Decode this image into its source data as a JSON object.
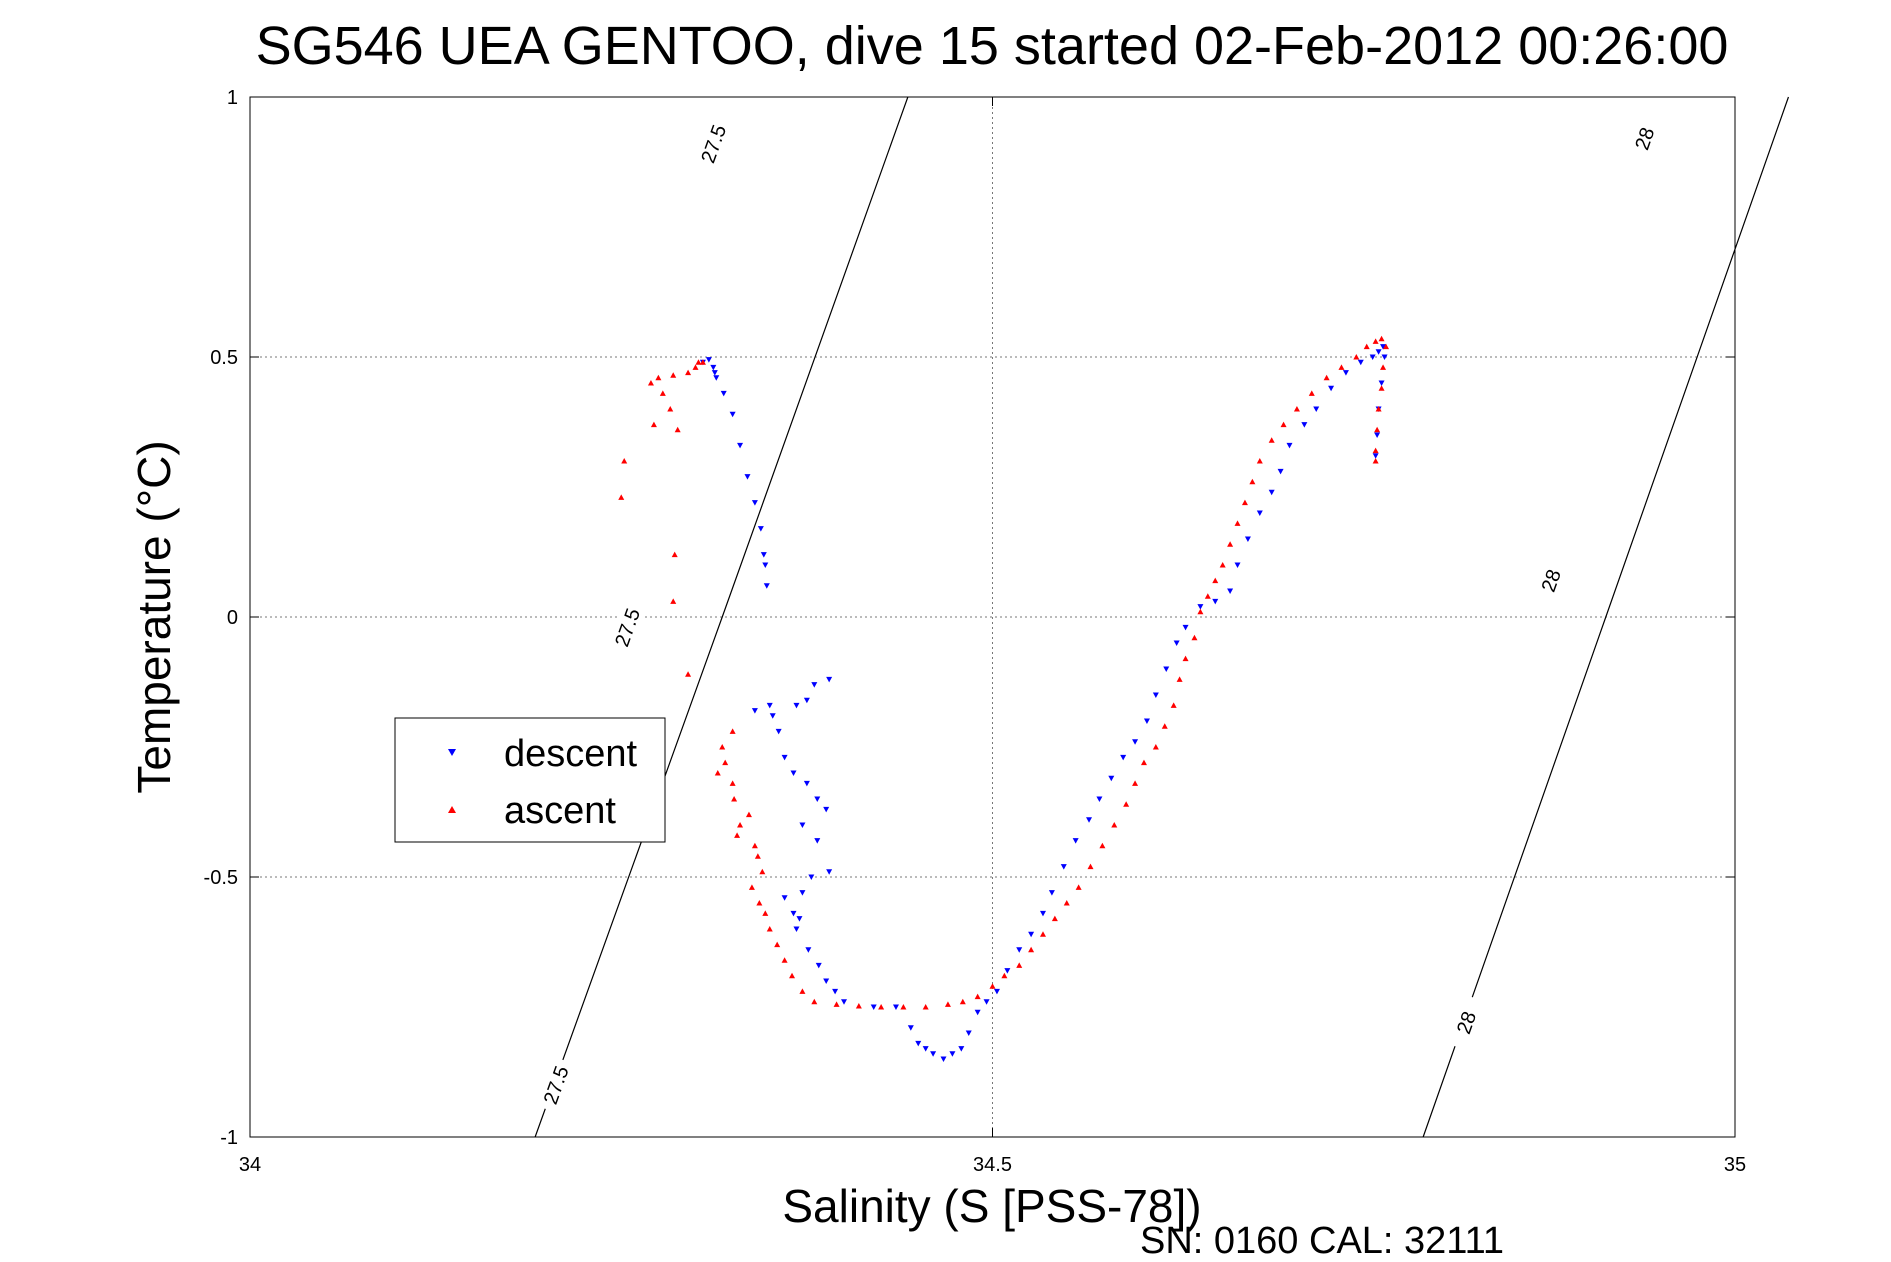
{
  "chart_data": {
    "type": "scatter",
    "title": "SG546 UEA GENTOO, dive 15 started 02-Feb-2012 00:26:00",
    "xlabel": "Salinity (S [PSS-78])",
    "ylabel": "Temperature (°C)",
    "footer": "SN: 0160  CAL: 32111",
    "xlim": [
      34,
      35
    ],
    "ylim": [
      -1,
      1
    ],
    "xticks": [
      34,
      34.5,
      35
    ],
    "xtick_labels": [
      "34",
      "34.5",
      "35"
    ],
    "yticks": [
      -1,
      -0.5,
      0,
      0.5,
      1
    ],
    "ytick_labels": [
      "-1",
      "-0.5",
      "0",
      "0.5",
      "1"
    ],
    "grid": true,
    "legend_position": "center-left",
    "contours": [
      {
        "label": "27.5",
        "points": [
          [
            34.192,
            -1
          ],
          [
            34.318,
            0
          ],
          [
            34.443,
            1
          ]
        ],
        "label_positions": [
          [
            34.206,
            -0.9
          ],
          [
            34.254,
            -0.02
          ],
          [
            34.312,
            0.91
          ]
        ]
      },
      {
        "label": "28",
        "points": [
          [
            34.79,
            -1
          ],
          [
            34.913,
            0
          ],
          [
            35.036,
            1
          ]
        ],
        "label_positions": [
          [
            34.819,
            -0.78
          ],
          [
            34.876,
            0.07
          ],
          [
            34.939,
            0.92
          ]
        ]
      }
    ],
    "series": [
      {
        "name": "descent",
        "color": "#0000ff",
        "marker": "triangle-down",
        "points": [
          [
            34.305,
            0.49
          ],
          [
            34.309,
            0.495
          ],
          [
            34.312,
            0.48
          ],
          [
            34.313,
            0.47
          ],
          [
            34.314,
            0.46
          ],
          [
            34.319,
            0.43
          ],
          [
            34.325,
            0.39
          ],
          [
            34.33,
            0.33
          ],
          [
            34.335,
            0.27
          ],
          [
            34.34,
            0.22
          ],
          [
            34.344,
            0.17
          ],
          [
            34.346,
            0.12
          ],
          [
            34.347,
            0.1
          ],
          [
            34.348,
            0.06
          ],
          [
            34.39,
            -0.12
          ],
          [
            34.38,
            -0.13
          ],
          [
            34.375,
            -0.16
          ],
          [
            34.368,
            -0.17
          ],
          [
            34.35,
            -0.17
          ],
          [
            34.34,
            -0.18
          ],
          [
            34.352,
            -0.19
          ],
          [
            34.356,
            -0.22
          ],
          [
            34.36,
            -0.27
          ],
          [
            34.366,
            -0.3
          ],
          [
            34.375,
            -0.32
          ],
          [
            34.382,
            -0.35
          ],
          [
            34.388,
            -0.37
          ],
          [
            34.372,
            -0.4
          ],
          [
            34.382,
            -0.43
          ],
          [
            34.39,
            -0.49
          ],
          [
            34.378,
            -0.5
          ],
          [
            34.372,
            -0.53
          ],
          [
            34.36,
            -0.54
          ],
          [
            34.366,
            -0.57
          ],
          [
            34.37,
            -0.58
          ],
          [
            34.368,
            -0.6
          ],
          [
            34.376,
            -0.64
          ],
          [
            34.383,
            -0.67
          ],
          [
            34.388,
            -0.7
          ],
          [
            34.394,
            -0.72
          ],
          [
            34.4,
            -0.74
          ],
          [
            34.42,
            -0.75
          ],
          [
            34.435,
            -0.75
          ],
          [
            34.445,
            -0.79
          ],
          [
            34.45,
            -0.82
          ],
          [
            34.455,
            -0.83
          ],
          [
            34.46,
            -0.84
          ],
          [
            34.467,
            -0.85
          ],
          [
            34.473,
            -0.84
          ],
          [
            34.479,
            -0.83
          ],
          [
            34.484,
            -0.8
          ],
          [
            34.49,
            -0.76
          ],
          [
            34.496,
            -0.74
          ],
          [
            34.503,
            -0.72
          ],
          [
            34.51,
            -0.68
          ],
          [
            34.518,
            -0.64
          ],
          [
            34.526,
            -0.61
          ],
          [
            34.534,
            -0.57
          ],
          [
            34.54,
            -0.53
          ],
          [
            34.548,
            -0.48
          ],
          [
            34.556,
            -0.43
          ],
          [
            34.565,
            -0.39
          ],
          [
            34.572,
            -0.35
          ],
          [
            34.58,
            -0.31
          ],
          [
            34.588,
            -0.27
          ],
          [
            34.596,
            -0.24
          ],
          [
            34.604,
            -0.2
          ],
          [
            34.61,
            -0.15
          ],
          [
            34.617,
            -0.1
          ],
          [
            34.624,
            -0.05
          ],
          [
            34.63,
            -0.02
          ],
          [
            34.64,
            0.02
          ],
          [
            34.65,
            0.03
          ],
          [
            34.66,
            0.05
          ],
          [
            34.665,
            0.1
          ],
          [
            34.672,
            0.15
          ],
          [
            34.68,
            0.2
          ],
          [
            34.688,
            0.24
          ],
          [
            34.694,
            0.28
          ],
          [
            34.7,
            0.33
          ],
          [
            34.71,
            0.37
          ],
          [
            34.718,
            0.4
          ],
          [
            34.728,
            0.44
          ],
          [
            34.738,
            0.47
          ],
          [
            34.748,
            0.49
          ],
          [
            34.756,
            0.5
          ],
          [
            34.76,
            0.51
          ],
          [
            34.763,
            0.52
          ],
          [
            34.764,
            0.5
          ],
          [
            34.762,
            0.45
          ],
          [
            34.76,
            0.4
          ],
          [
            34.759,
            0.35
          ],
          [
            34.758,
            0.31
          ]
        ]
      },
      {
        "name": "ascent",
        "color": "#ff0000",
        "marker": "triangle-up",
        "points": [
          [
            34.302,
            0.49
          ],
          [
            34.305,
            0.49
          ],
          [
            34.3,
            0.48
          ],
          [
            34.295,
            0.47
          ],
          [
            34.285,
            0.465
          ],
          [
            34.275,
            0.46
          ],
          [
            34.27,
            0.45
          ],
          [
            34.278,
            0.43
          ],
          [
            34.283,
            0.4
          ],
          [
            34.288,
            0.36
          ],
          [
            34.272,
            0.37
          ],
          [
            34.252,
            0.3
          ],
          [
            34.25,
            0.23
          ],
          [
            34.286,
            0.12
          ],
          [
            34.285,
            0.03
          ],
          [
            34.295,
            -0.11
          ],
          [
            34.325,
            -0.22
          ],
          [
            34.318,
            -0.25
          ],
          [
            34.32,
            -0.28
          ],
          [
            34.315,
            -0.3
          ],
          [
            34.325,
            -0.32
          ],
          [
            34.326,
            -0.35
          ],
          [
            34.336,
            -0.38
          ],
          [
            34.33,
            -0.4
          ],
          [
            34.328,
            -0.42
          ],
          [
            34.34,
            -0.44
          ],
          [
            34.342,
            -0.46
          ],
          [
            34.345,
            -0.49
          ],
          [
            34.338,
            -0.52
          ],
          [
            34.343,
            -0.55
          ],
          [
            34.347,
            -0.57
          ],
          [
            34.35,
            -0.6
          ],
          [
            34.355,
            -0.63
          ],
          [
            34.36,
            -0.66
          ],
          [
            34.365,
            -0.69
          ],
          [
            34.372,
            -0.72
          ],
          [
            34.38,
            -0.74
          ],
          [
            34.395,
            -0.745
          ],
          [
            34.41,
            -0.748
          ],
          [
            34.425,
            -0.75
          ],
          [
            34.44,
            -0.75
          ],
          [
            34.455,
            -0.75
          ],
          [
            34.47,
            -0.745
          ],
          [
            34.48,
            -0.74
          ],
          [
            34.49,
            -0.73
          ],
          [
            34.5,
            -0.71
          ],
          [
            34.508,
            -0.69
          ],
          [
            34.518,
            -0.67
          ],
          [
            34.526,
            -0.64
          ],
          [
            34.534,
            -0.61
          ],
          [
            34.542,
            -0.58
          ],
          [
            34.55,
            -0.55
          ],
          [
            34.558,
            -0.52
          ],
          [
            34.566,
            -0.48
          ],
          [
            34.574,
            -0.44
          ],
          [
            34.582,
            -0.4
          ],
          [
            34.59,
            -0.36
          ],
          [
            34.596,
            -0.32
          ],
          [
            34.602,
            -0.28
          ],
          [
            34.61,
            -0.25
          ],
          [
            34.616,
            -0.21
          ],
          [
            34.622,
            -0.17
          ],
          [
            34.626,
            -0.12
          ],
          [
            34.63,
            -0.08
          ],
          [
            34.636,
            -0.04
          ],
          [
            34.64,
            0.01
          ],
          [
            34.645,
            0.04
          ],
          [
            34.65,
            0.07
          ],
          [
            34.655,
            0.1
          ],
          [
            34.66,
            0.14
          ],
          [
            34.665,
            0.18
          ],
          [
            34.67,
            0.22
          ],
          [
            34.675,
            0.26
          ],
          [
            34.68,
            0.3
          ],
          [
            34.688,
            0.34
          ],
          [
            34.696,
            0.37
          ],
          [
            34.705,
            0.4
          ],
          [
            34.715,
            0.43
          ],
          [
            34.725,
            0.46
          ],
          [
            34.735,
            0.48
          ],
          [
            34.745,
            0.5
          ],
          [
            34.752,
            0.52
          ],
          [
            34.758,
            0.53
          ],
          [
            34.762,
            0.535
          ],
          [
            34.765,
            0.52
          ],
          [
            34.763,
            0.48
          ],
          [
            34.762,
            0.44
          ],
          [
            34.76,
            0.4
          ],
          [
            34.759,
            0.36
          ],
          [
            34.758,
            0.32
          ],
          [
            34.758,
            0.3
          ]
        ]
      }
    ]
  }
}
